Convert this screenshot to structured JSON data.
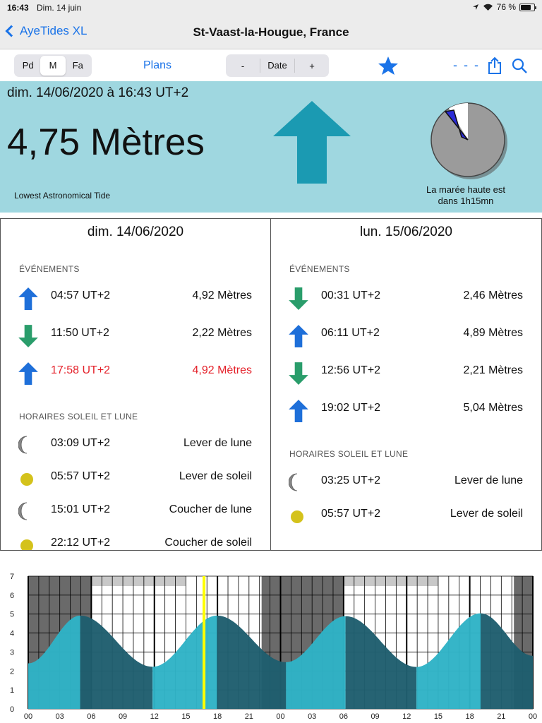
{
  "status_bar": {
    "time": "16:43",
    "date": "Dim. 14 juin",
    "battery": "76 %",
    "battery_level": 0.76
  },
  "nav": {
    "back_label": "AyeTides XL",
    "title": "St-Vaast-la-Hougue, France"
  },
  "toolbar": {
    "segments": [
      "Pd",
      "M",
      "Fa"
    ],
    "selected_segment": "M",
    "plans_label": "Plans",
    "date_minus": "-",
    "date_label": "Date",
    "date_plus": "+",
    "dashes_label": "- - -",
    "accent_color": "#1a73e8"
  },
  "current": {
    "datetime": "dim. 14/06/2020 à 16:43 UT+2",
    "height": "4,75 Mètres",
    "reference": "Lowest Astronomical Tide",
    "next_tide_line1": "La marée haute est",
    "next_tide_line2": "dans 1h15mn",
    "direction": "rising",
    "panel_color": "#9fd7e0",
    "arrow_color": "#1b9ab2"
  },
  "days": [
    {
      "title": "dim. 14/06/2020",
      "events_title": "ÉVÉNEMENTS",
      "events": [
        {
          "type": "high",
          "time": "04:57 UT+2",
          "value": "4,92 Mètres",
          "highlight": false
        },
        {
          "type": "low",
          "time": "11:50 UT+2",
          "value": "2,22 Mètres",
          "highlight": false
        },
        {
          "type": "high",
          "time": "17:58 UT+2",
          "value": "4,92 Mètres",
          "highlight": true
        }
      ],
      "sun_moon_title": "HORAIRES SOLEIL ET LUNE",
      "sun_moon": [
        {
          "icon": "moon-icon",
          "time": "03:09 UT+2",
          "label": "Lever de lune"
        },
        {
          "icon": "sun-icon",
          "time": "05:57 UT+2",
          "label": "Lever de soleil"
        },
        {
          "icon": "moon-icon",
          "time": "15:01 UT+2",
          "label": "Coucher de lune"
        },
        {
          "icon": "sun-icon",
          "time": "22:12 UT+2",
          "label": "Coucher de soleil"
        }
      ]
    },
    {
      "title": "lun. 15/06/2020",
      "events_title": "ÉVÉNEMENTS",
      "events": [
        {
          "type": "low",
          "time": "00:31 UT+2",
          "value": "2,46 Mètres",
          "highlight": false
        },
        {
          "type": "high",
          "time": "06:11 UT+2",
          "value": "4,89 Mètres",
          "highlight": false
        },
        {
          "type": "low",
          "time": "12:56 UT+2",
          "value": "2,21 Mètres",
          "highlight": false
        },
        {
          "type": "high",
          "time": "19:02 UT+2",
          "value": "5,04 Mètres",
          "highlight": false
        }
      ],
      "sun_moon_title": "HORAIRES SOLEIL ET LUNE",
      "sun_moon": [
        {
          "icon": "moon-icon",
          "time": "03:25 UT+2",
          "label": "Lever de lune"
        },
        {
          "icon": "sun-icon",
          "time": "05:57 UT+2",
          "label": "Lever de soleil"
        }
      ]
    }
  ],
  "colors": {
    "high_arrow": "#1e6fd9",
    "low_arrow": "#2a9d6b",
    "highlight_text": "#e4212a",
    "sun": "#d4c21b",
    "tide_fill_light": "#2fb3c6",
    "tide_fill_dark": "#1f5e6e",
    "night": "#6a6a6a",
    "now_line": "#ffff00"
  },
  "chart_data": {
    "type": "area",
    "ylim": [
      0,
      7
    ],
    "yticks": [
      0,
      1,
      2,
      3,
      4,
      5,
      6,
      7
    ],
    "xlim_hours": [
      0,
      48
    ],
    "xtick_labels": [
      "00",
      "03",
      "06",
      "09",
      "12",
      "15",
      "18",
      "21",
      "00",
      "03",
      "06",
      "09",
      "12",
      "15",
      "18",
      "21",
      "00"
    ],
    "extrema": [
      {
        "t": 0,
        "h": 2.4
      },
      {
        "t": 4.95,
        "h": 4.92
      },
      {
        "t": 11.83,
        "h": 2.22
      },
      {
        "t": 17.97,
        "h": 4.92
      },
      {
        "t": 24.52,
        "h": 2.46
      },
      {
        "t": 30.18,
        "h": 4.89
      },
      {
        "t": 36.93,
        "h": 2.21
      },
      {
        "t": 43.03,
        "h": 5.04
      },
      {
        "t": 48,
        "h": 2.8
      }
    ],
    "night_hours": [
      [
        0,
        5.95
      ],
      [
        22.2,
        29.95
      ],
      [
        46.2,
        48
      ]
    ],
    "now_hour": 16.72
  }
}
